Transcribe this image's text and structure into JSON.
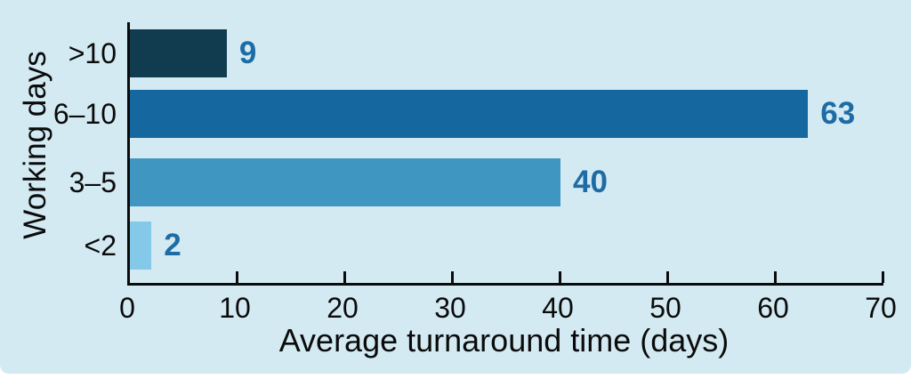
{
  "chart_data": {
    "type": "bar",
    "orientation": "horizontal",
    "categories": [
      ">10",
      "6–10",
      "3–5",
      "<2"
    ],
    "values": [
      9,
      63,
      40,
      2
    ],
    "value_labels": [
      "9",
      "63",
      "40",
      "2"
    ],
    "bar_colors": [
      "#113c50",
      "#15689f",
      "#3f96c1",
      "#85c9e8"
    ],
    "value_label_color": "#1e6ca5",
    "xlabel": "Average turnaround time (days)",
    "ylabel": "Working days",
    "xlim": [
      0,
      70
    ],
    "xticks": [
      0,
      10,
      20,
      30,
      40,
      50,
      60,
      70
    ],
    "grid": false,
    "legend": false,
    "background_color": "#d3eaf3",
    "axis_color": "#0b0b0b"
  }
}
